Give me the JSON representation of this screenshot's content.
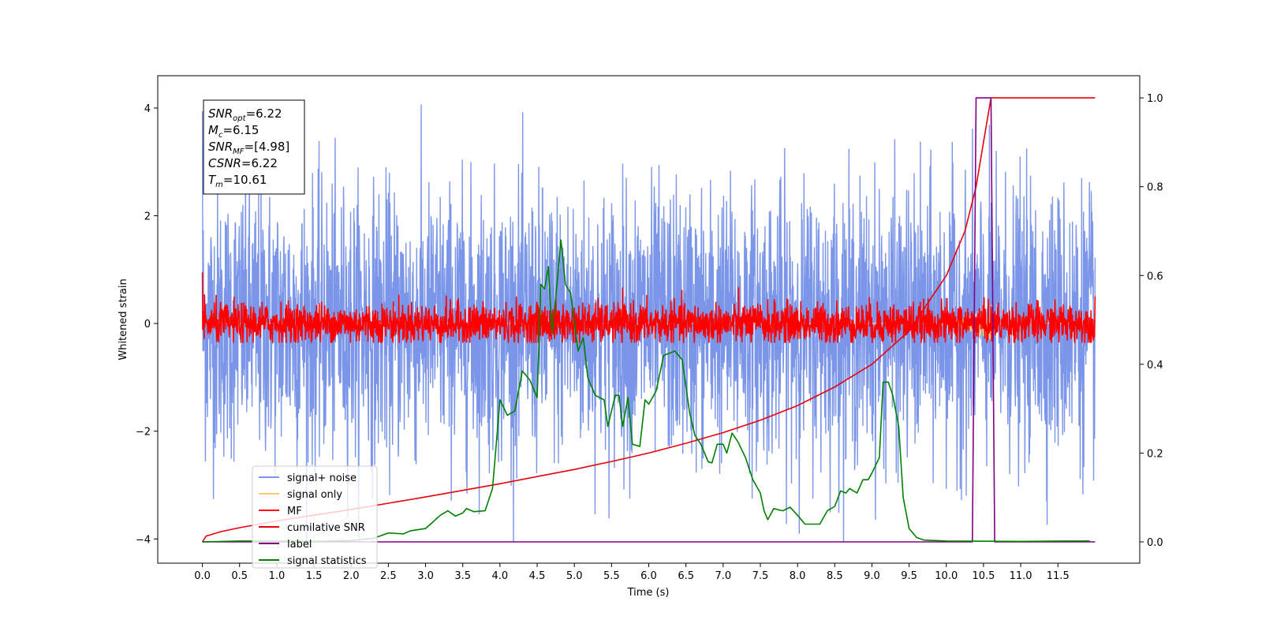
{
  "chart_data": {
    "type": "line",
    "xlabel": "Time (s)",
    "ylabel": "Whitened strain",
    "xlim": [
      -0.6,
      12.6
    ],
    "ylim_left": [
      -4.45,
      4.6
    ],
    "ylim_right": [
      -0.048,
      1.05
    ],
    "x_ticks": [
      0.0,
      0.5,
      1.0,
      1.5,
      2.0,
      2.5,
      3.0,
      3.5,
      4.0,
      4.5,
      5.0,
      5.5,
      6.0,
      6.5,
      7.0,
      7.5,
      8.0,
      8.5,
      9.0,
      9.5,
      10.0,
      10.5,
      11.0,
      11.5
    ],
    "x_tick_labels": [
      "0.0",
      "0.5",
      "1.0",
      "1.5",
      "2.0",
      "2.5",
      "3.0",
      "3.5",
      "4.0",
      "4.5",
      "5.0",
      "5.5",
      "6.0",
      "6.5",
      "7.0",
      "7.5",
      "8.0",
      "8.5",
      "9.0",
      "9.5",
      "10.0",
      "10.5",
      "11.0",
      "11.5"
    ],
    "y_left_ticks": [
      -4,
      -2,
      0,
      2,
      4
    ],
    "y_left_tick_labels": [
      "−4",
      "−2",
      "0",
      "2",
      "4"
    ],
    "y_right_ticks": [
      0.0,
      0.2,
      0.4,
      0.6,
      0.8,
      1.0
    ],
    "y_right_tick_labels": [
      "0.0",
      "0.2",
      "0.4",
      "0.6",
      "0.8",
      "1.0"
    ],
    "legend_position": "lower-left",
    "series": [
      {
        "name": "signal+ noise",
        "axis": "left",
        "color": "#7b96e8",
        "kind": "noise",
        "x_range": [
          0.0,
          12.0
        ],
        "band": [
          -2.0,
          2.0
        ],
        "peaks_max": 4.15,
        "peaks_min": -4.05
      },
      {
        "name": "signal only",
        "axis": "left",
        "color": "#ffc966",
        "kind": "chirp",
        "x_range": [
          0.0,
          12.0
        ],
        "amplitude_max": 0.35
      },
      {
        "name": "MF",
        "axis": "left",
        "color": "#ff0000",
        "kind": "noise",
        "x_range": [
          0.0,
          12.0
        ],
        "band": [
          -0.3,
          0.3
        ],
        "peaks_max": 1.0,
        "peaks_min": -0.35
      },
      {
        "name": "cumilative SNR",
        "axis": "right",
        "color": "#e8000b",
        "kind": "line",
        "points": [
          [
            0.0,
            0.0
          ],
          [
            0.05,
            0.013
          ],
          [
            0.25,
            0.023
          ],
          [
            0.5,
            0.032
          ],
          [
            1.0,
            0.047
          ],
          [
            1.5,
            0.06
          ],
          [
            2.0,
            0.073
          ],
          [
            2.5,
            0.087
          ],
          [
            3.0,
            0.101
          ],
          [
            3.5,
            0.116
          ],
          [
            4.0,
            0.131
          ],
          [
            4.5,
            0.147
          ],
          [
            5.0,
            0.163
          ],
          [
            5.5,
            0.181
          ],
          [
            6.0,
            0.2
          ],
          [
            6.5,
            0.222
          ],
          [
            7.0,
            0.246
          ],
          [
            7.5,
            0.274
          ],
          [
            8.0,
            0.307
          ],
          [
            8.5,
            0.349
          ],
          [
            9.0,
            0.4
          ],
          [
            9.5,
            0.475
          ],
          [
            10.0,
            0.6
          ],
          [
            10.25,
            0.7
          ],
          [
            10.4,
            0.8
          ],
          [
            10.5,
            0.9
          ],
          [
            10.6,
            1.0
          ],
          [
            12.0,
            1.0
          ]
        ]
      },
      {
        "name": "label",
        "axis": "right",
        "color": "#800080",
        "kind": "line",
        "points": [
          [
            0.0,
            0.0
          ],
          [
            10.35,
            0.0
          ],
          [
            10.4,
            1.0
          ],
          [
            10.6,
            1.0
          ],
          [
            10.65,
            0.0
          ],
          [
            12.0,
            0.0
          ]
        ]
      },
      {
        "name": "signal statistics",
        "axis": "right",
        "color": "#008000",
        "kind": "line",
        "points": [
          [
            0.0,
            0.0
          ],
          [
            0.5,
            0.002
          ],
          [
            1.0,
            0.002
          ],
          [
            1.5,
            0.001
          ],
          [
            2.0,
            0.003
          ],
          [
            2.3,
            0.008
          ],
          [
            2.5,
            0.02
          ],
          [
            2.7,
            0.018
          ],
          [
            2.8,
            0.025
          ],
          [
            3.0,
            0.03
          ],
          [
            3.2,
            0.06
          ],
          [
            3.3,
            0.07
          ],
          [
            3.4,
            0.058
          ],
          [
            3.5,
            0.065
          ],
          [
            3.55,
            0.075
          ],
          [
            3.65,
            0.068
          ],
          [
            3.8,
            0.07
          ],
          [
            3.9,
            0.12
          ],
          [
            4.0,
            0.32
          ],
          [
            4.1,
            0.285
          ],
          [
            4.2,
            0.295
          ],
          [
            4.3,
            0.385
          ],
          [
            4.4,
            0.365
          ],
          [
            4.5,
            0.325
          ],
          [
            4.55,
            0.58
          ],
          [
            4.6,
            0.57
          ],
          [
            4.65,
            0.62
          ],
          [
            4.7,
            0.47
          ],
          [
            4.75,
            0.55
          ],
          [
            4.82,
            0.68
          ],
          [
            4.88,
            0.58
          ],
          [
            4.95,
            0.56
          ],
          [
            5.05,
            0.43
          ],
          [
            5.12,
            0.46
          ],
          [
            5.18,
            0.37
          ],
          [
            5.28,
            0.33
          ],
          [
            5.4,
            0.32
          ],
          [
            5.45,
            0.26
          ],
          [
            5.55,
            0.33
          ],
          [
            5.6,
            0.33
          ],
          [
            5.65,
            0.26
          ],
          [
            5.72,
            0.325
          ],
          [
            5.78,
            0.22
          ],
          [
            5.88,
            0.215
          ],
          [
            5.95,
            0.32
          ],
          [
            6.0,
            0.31
          ],
          [
            6.1,
            0.34
          ],
          [
            6.2,
            0.42
          ],
          [
            6.28,
            0.425
          ],
          [
            6.35,
            0.43
          ],
          [
            6.45,
            0.41
          ],
          [
            6.55,
            0.29
          ],
          [
            6.62,
            0.24
          ],
          [
            6.7,
            0.22
          ],
          [
            6.8,
            0.18
          ],
          [
            6.85,
            0.178
          ],
          [
            6.92,
            0.22
          ],
          [
            7.0,
            0.22
          ],
          [
            7.05,
            0.2
          ],
          [
            7.12,
            0.245
          ],
          [
            7.2,
            0.225
          ],
          [
            7.3,
            0.19
          ],
          [
            7.4,
            0.14
          ],
          [
            7.5,
            0.11
          ],
          [
            7.55,
            0.07
          ],
          [
            7.6,
            0.05
          ],
          [
            7.68,
            0.075
          ],
          [
            7.8,
            0.07
          ],
          [
            7.9,
            0.078
          ],
          [
            8.0,
            0.06
          ],
          [
            8.1,
            0.04
          ],
          [
            8.3,
            0.04
          ],
          [
            8.4,
            0.07
          ],
          [
            8.5,
            0.08
          ],
          [
            8.58,
            0.115
          ],
          [
            8.65,
            0.11
          ],
          [
            8.7,
            0.12
          ],
          [
            8.8,
            0.11
          ],
          [
            8.88,
            0.14
          ],
          [
            8.95,
            0.14
          ],
          [
            9.0,
            0.155
          ],
          [
            9.1,
            0.19
          ],
          [
            9.15,
            0.36
          ],
          [
            9.22,
            0.36
          ],
          [
            9.28,
            0.33
          ],
          [
            9.36,
            0.26
          ],
          [
            9.42,
            0.1
          ],
          [
            9.5,
            0.03
          ],
          [
            9.6,
            0.01
          ],
          [
            9.7,
            0.004
          ],
          [
            10.0,
            0.002
          ],
          [
            11.0,
            0.001
          ],
          [
            11.6,
            0.002
          ],
          [
            11.93,
            0.002
          ]
        ]
      }
    ],
    "annotations": [
      {
        "base": "SNR",
        "sub": "opt",
        "text": "=6.22"
      },
      {
        "base": "M",
        "sub": "c",
        "text": "=6.15"
      },
      {
        "base": "SNR",
        "sub": "MF",
        "text": "=[4.98]"
      },
      {
        "base": "CSNR",
        "sub": "",
        "text": "=6.22"
      },
      {
        "base": "T",
        "sub": "m",
        "text": "=10.61"
      }
    ]
  }
}
